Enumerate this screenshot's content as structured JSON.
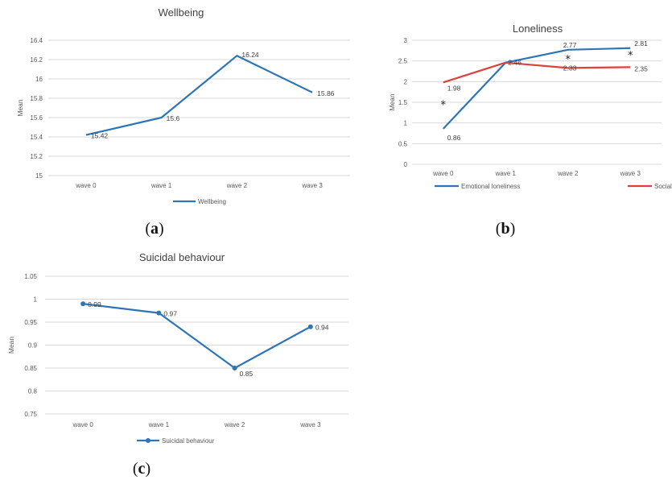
{
  "chart_data": [
    {
      "id": "a",
      "type": "line",
      "title": "Wellbeing",
      "ylabel": "Mean",
      "categories": [
        "wave 0",
        "wave 1",
        "wave 2",
        "wave 3"
      ],
      "ylim": [
        15,
        16.4
      ],
      "yticks": [
        "15",
        "15.2",
        "15.4",
        "15.6",
        "15.8",
        "16",
        "16.2",
        "16.4"
      ],
      "series": [
        {
          "name": "Wellbeing",
          "values": [
            15.42,
            15.6,
            16.24,
            15.86
          ],
          "labels": [
            "15.42",
            "15.6",
            "16.24",
            "15.86"
          ],
          "color": "#2e75b6",
          "markers": false
        }
      ],
      "legend": "bottom",
      "grid": true,
      "panel_label": "a"
    },
    {
      "id": "b",
      "type": "line",
      "title": "Loneliness",
      "ylabel": "Mean",
      "categories": [
        "wave 0",
        "wave 1",
        "wave 2",
        "wave 3"
      ],
      "ylim": [
        0,
        3
      ],
      "yticks": [
        "0",
        "0.5",
        "1",
        "1.5",
        "2",
        "2.5",
        "3"
      ],
      "series": [
        {
          "name": "Emotional loneliness",
          "values": [
            0.86,
            2.46,
            2.77,
            2.81
          ],
          "labels": [
            "0.86",
            "",
            "2.77",
            "2.81"
          ],
          "color": "#2e75b6",
          "markers": false
        },
        {
          "name": "Social loneliness",
          "values": [
            1.98,
            2.46,
            2.33,
            2.35
          ],
          "labels": [
            "1.98",
            "2.46",
            "2.33",
            "2.35"
          ],
          "color": "#e0403a",
          "markers": false
        }
      ],
      "annotations": [
        {
          "text": "*",
          "category": "wave 0",
          "y": 1.45
        },
        {
          "text": "*",
          "category": "wave 2",
          "y": 2.55
        },
        {
          "text": "*",
          "category": "wave 3",
          "y": 2.65
        }
      ],
      "legend": "bottom",
      "grid": true,
      "panel_label": "b"
    },
    {
      "id": "c",
      "type": "line",
      "title": "Suicidal behaviour",
      "ylabel": "Mean",
      "categories": [
        "wave 0",
        "wave 1",
        "wave 2",
        "wave 3"
      ],
      "ylim": [
        0.75,
        1.05
      ],
      "yticks": [
        "0.75",
        "0.8",
        "0.85",
        "0.9",
        "0.95",
        "1",
        "1.05"
      ],
      "series": [
        {
          "name": "Suicidal behaviour",
          "values": [
            0.99,
            0.97,
            0.85,
            0.94
          ],
          "labels": [
            "0.99",
            "0.97",
            "0.85",
            "0.94"
          ],
          "color": "#2e75b6",
          "markers": true
        }
      ],
      "legend": "bottom",
      "grid": true,
      "panel_label": "c"
    }
  ]
}
